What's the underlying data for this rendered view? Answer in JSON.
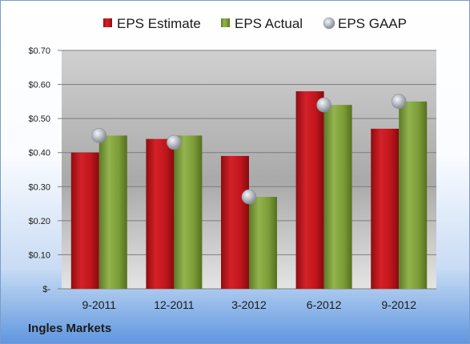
{
  "chart_data": {
    "type": "bar",
    "categories": [
      "9-2011",
      "12-2011",
      "3-2012",
      "6-2012",
      "9-2012"
    ],
    "series": [
      {
        "name": "EPS Estimate",
        "type": "bar",
        "color": "#c8191f",
        "values": [
          0.4,
          0.44,
          0.39,
          0.58,
          0.47
        ]
      },
      {
        "name": "EPS Actual",
        "type": "bar",
        "color": "#7fa13b",
        "values": [
          0.45,
          0.45,
          0.27,
          0.54,
          0.55
        ]
      },
      {
        "name": "EPS GAAP",
        "type": "scatter",
        "color": "#b9bcc4",
        "values": [
          0.45,
          0.43,
          0.27,
          0.54,
          0.55
        ]
      }
    ],
    "ylim": [
      0,
      0.7
    ],
    "yticks": [
      0,
      0.1,
      0.2,
      0.3,
      0.4,
      0.5,
      0.6,
      0.7
    ],
    "ytick_labels": [
      "$-",
      "$0.10",
      "$0.20",
      "$0.30",
      "$0.40",
      "$0.50",
      "$0.60",
      "$0.70"
    ],
    "grid": true,
    "legend_position": "top"
  },
  "company": "Ingles Markets"
}
